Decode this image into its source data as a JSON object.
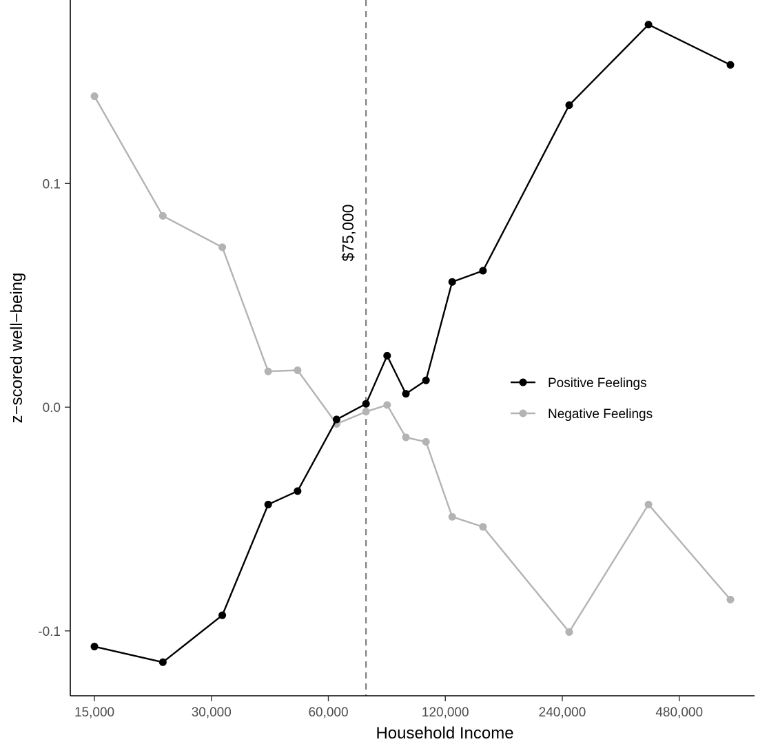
{
  "chart_data": {
    "type": "line",
    "x_scale": "log2",
    "x": [
      15000,
      22500,
      32000,
      42000,
      50000,
      63000,
      75000,
      85000,
      95000,
      107000,
      125000,
      150000,
      250000,
      400000,
      650000
    ],
    "x_tick_values": [
      15000,
      30000,
      60000,
      120000,
      240000,
      480000
    ],
    "x_tick_labels": [
      "15,000",
      "30,000",
      "60,000",
      "120,000",
      "240,000",
      "480,000"
    ],
    "y_tick_values": [
      -0.1,
      0.0,
      0.1
    ],
    "y_tick_labels": [
      "-0.1",
      "0.0",
      "0.1"
    ],
    "xlim": [
      13000,
      750000
    ],
    "ylim": [
      -0.129,
      0.182
    ],
    "xlabel": "Household Income",
    "ylabel": "z−scored well−being",
    "grid": false,
    "legend_position": "right",
    "reference_line": {
      "x": 75000,
      "label": "$75,000",
      "style": "dashed",
      "color": "#808080"
    },
    "series": [
      {
        "name": "Positive Feelings",
        "color": "#000000",
        "values": [
          -0.107,
          -0.114,
          -0.093,
          -0.0435,
          -0.0375,
          -0.0055,
          0.0015,
          0.023,
          0.006,
          0.012,
          0.056,
          0.061,
          0.135,
          0.171,
          0.153
        ]
      },
      {
        "name": "Negative Feelings",
        "color": "#b3b3b3",
        "values": [
          0.139,
          0.0855,
          0.0715,
          0.016,
          0.0165,
          -0.0075,
          -0.002,
          0.001,
          -0.0135,
          -0.0155,
          -0.049,
          -0.0535,
          -0.1005,
          -0.0435,
          -0.086
        ]
      }
    ]
  }
}
